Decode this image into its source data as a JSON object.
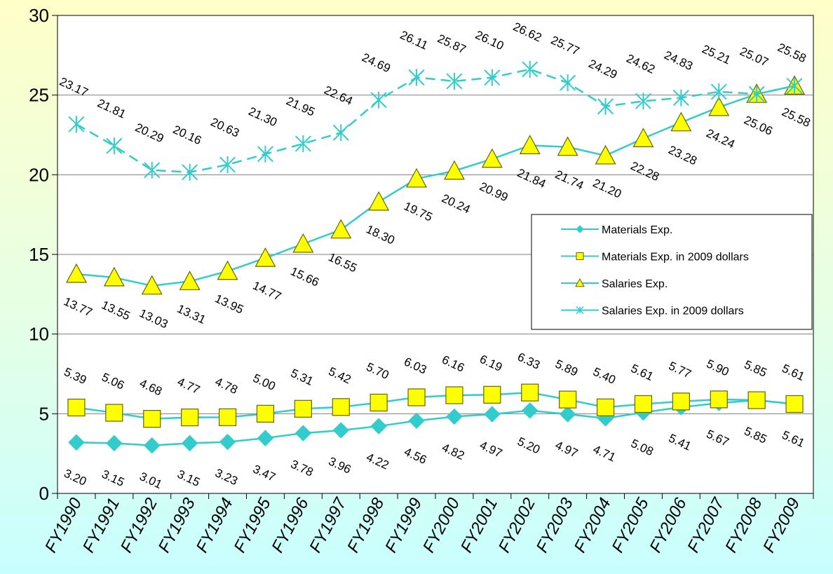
{
  "chart_data": {
    "type": "line",
    "title": "",
    "xlabel": "",
    "ylabel": "",
    "ylim": [
      0,
      30
    ],
    "yticks": [
      0,
      5,
      10,
      15,
      20,
      25,
      30
    ],
    "grid": true,
    "legend_position": "right",
    "categories": [
      "FY1990",
      "FY1991",
      "FY1992",
      "FY1993",
      "FY1994",
      "FY1995",
      "FY1996",
      "FY1997",
      "FY1998",
      "FY1999",
      "FY2000",
      "FY2001",
      "FY2002",
      "FY2003",
      "FY2004",
      "FY2005",
      "FY2006",
      "FY2007",
      "FY2008",
      "FY2009"
    ],
    "series": [
      {
        "name": "Materials Exp.",
        "marker": "diamond",
        "line_color": "#33cccc",
        "marker_fill": "#33cccc",
        "values": [
          3.2,
          3.15,
          3.01,
          3.15,
          3.23,
          3.47,
          3.78,
          3.96,
          4.22,
          4.56,
          4.82,
          4.97,
          5.2,
          4.97,
          4.71,
          5.08,
          5.41,
          5.67,
          5.85,
          5.61
        ],
        "labels": [
          "3.20",
          "3.15",
          "3.01",
          "3.15",
          "3.23",
          "3.47",
          "3.78",
          "3.96",
          "4.22",
          "4.56",
          "4.82",
          "4.97",
          "5.20",
          "4.97",
          "4.71",
          "5.08",
          "5.41",
          "5.67",
          "5.85",
          "5.61"
        ]
      },
      {
        "name": "Materials Exp. in 2009 dollars",
        "marker": "square",
        "line_color": "#33cccc",
        "marker_fill": "#ffff00",
        "values": [
          5.39,
          5.06,
          4.68,
          4.77,
          4.78,
          5.0,
          5.31,
          5.42,
          5.7,
          6.03,
          6.16,
          6.19,
          6.33,
          5.89,
          5.4,
          5.61,
          5.77,
          5.9,
          5.85,
          5.61
        ],
        "labels": [
          "5.39",
          "5.06",
          "4.68",
          "4.77",
          "4.78",
          "5.00",
          "5.31",
          "5.42",
          "5.70",
          "6.03",
          "6.16",
          "6.19",
          "6.33",
          "5.89",
          "5.40",
          "5.61",
          "5.77",
          "5.90",
          "5.85",
          "5.61"
        ]
      },
      {
        "name": "Salaries Exp.",
        "marker": "triangle",
        "line_color": "#33cccc",
        "marker_fill": "#ffff00",
        "values": [
          13.77,
          13.55,
          13.03,
          13.31,
          13.95,
          14.77,
          15.66,
          16.55,
          18.3,
          19.75,
          20.24,
          20.99,
          21.84,
          21.74,
          21.2,
          22.28,
          23.28,
          24.24,
          25.06,
          25.58
        ],
        "labels": [
          "13.77",
          "13.55",
          "13.03",
          "13.31",
          "13.95",
          "14.77",
          "15.66",
          "16.55",
          "18.30",
          "19.75",
          "20.24",
          "20.99",
          "21.84",
          "21.74",
          "21.20",
          "22.28",
          "23.28",
          "24.24",
          "25.06",
          "25.58"
        ]
      },
      {
        "name": "Salaries Exp. in 2009 dollars",
        "marker": "star",
        "line_color": "#33cccc",
        "marker_fill": "#33cccc",
        "values": [
          23.17,
          21.81,
          20.29,
          20.16,
          20.63,
          21.3,
          21.95,
          22.64,
          24.69,
          26.11,
          25.87,
          26.1,
          26.62,
          25.77,
          24.29,
          24.62,
          24.83,
          25.21,
          25.07,
          25.58
        ],
        "labels": [
          "23.17",
          "21.81",
          "20.29",
          "20.16",
          "20.63",
          "21.30",
          "21.95",
          "22.64",
          "24.69",
          "26.11",
          "25.87",
          "26.10",
          "26.62",
          "25.77",
          "24.29",
          "24.62",
          "24.83",
          "25.21",
          "25.07",
          "25.58"
        ]
      }
    ]
  }
}
